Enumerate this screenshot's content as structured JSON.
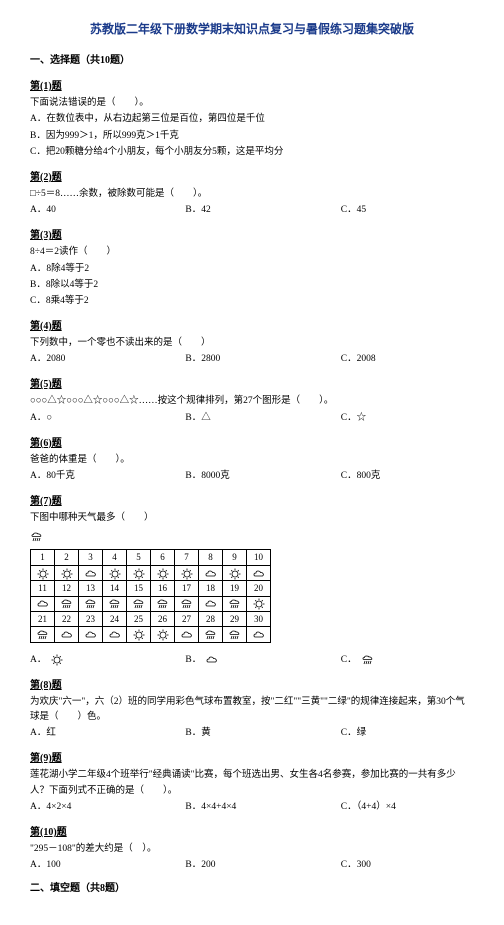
{
  "title": "苏教版二年级下册数学期末知识点复习与暑假练习题集突破版",
  "section1": "一、选择题（共10题）",
  "q1": {
    "num": "第(1)题",
    "text": "下面说法错误的是（　　）。",
    "a": "A．在数位表中，从右边起第三位是百位，第四位是千位",
    "b": "B．因为999＞1，所以999克＞1千克",
    "c": "C．把20颗糖分给4个小朋友，每个小朋友分5颗，这是平均分"
  },
  "q2": {
    "num": "第(2)题",
    "text": "□÷5＝8……余数，被除数可能是（　　）。",
    "a": "A．40",
    "b": "B．42",
    "c": "C．45"
  },
  "q3": {
    "num": "第(3)题",
    "text": "8÷4＝2读作（　　）",
    "a": "A．8除4等于2",
    "b": "B．8除以4等于2",
    "c": "C．8乘4等于2"
  },
  "q4": {
    "num": "第(4)题",
    "text": "下列数中，一个零也不读出来的是（　　）",
    "a": "A．2080",
    "b": "B．2800",
    "c": "C．2008"
  },
  "q5": {
    "num": "第(5)题",
    "text": "○○○△☆○○○△☆○○○△☆……按这个规律排列，第27个图形是（　　）。",
    "a": "A．○",
    "b": "B．△",
    "c": "C．☆"
  },
  "q6": {
    "num": "第(6)题",
    "text": "爸爸的体重是（　　）。",
    "a": "A．80千克",
    "b": "B．8000克",
    "c": "C．800克"
  },
  "q7": {
    "num": "第(7)题",
    "text": "下图中哪种天气最多（　　）",
    "a": "A．",
    "b": "B．",
    "c": "C．",
    "days": [
      "1",
      "2",
      "3",
      "4",
      "5",
      "6",
      "7",
      "8",
      "9",
      "10",
      "11",
      "12",
      "13",
      "14",
      "15",
      "16",
      "17",
      "18",
      "19",
      "20",
      "21",
      "22",
      "23",
      "24",
      "25",
      "26",
      "27",
      "28",
      "29",
      "30"
    ],
    "weather": [
      "s",
      "s",
      "c",
      "s",
      "s",
      "s",
      "s",
      "c",
      "s",
      "c",
      "c",
      "r",
      "r",
      "r",
      "r",
      "r",
      "r",
      "c",
      "r",
      "s",
      "r",
      "c",
      "c",
      "c",
      "s",
      "s",
      "c",
      "r",
      "r",
      "c"
    ]
  },
  "q8": {
    "num": "第(8)题",
    "text": "为欢庆\"六一\"，六（2）班的同学用彩色气球布置教室，按\"二红\"\"三黄\"\"二绿\"的规律连接起来，第30个气球是（　　）色。",
    "a": "A．红",
    "b": "B．黄",
    "c": "C．绿"
  },
  "q9": {
    "num": "第(9)题",
    "text": "莲花湖小学二年级4个班举行\"经典诵读\"比赛，每个班选出男、女生各4名参赛，参加比赛的一共有多少人？下面列式不正确的是（　　）。",
    "a": "A．4×2×4",
    "b": "B．4×4+4×4",
    "c": "C．（4+4）×4"
  },
  "q10": {
    "num": "第(10)题",
    "text": "\"295－108\"的差大约是（　）。",
    "a": "A．100",
    "b": "B．200",
    "c": "C．300"
  },
  "section2": "二、填空题（共8题）"
}
